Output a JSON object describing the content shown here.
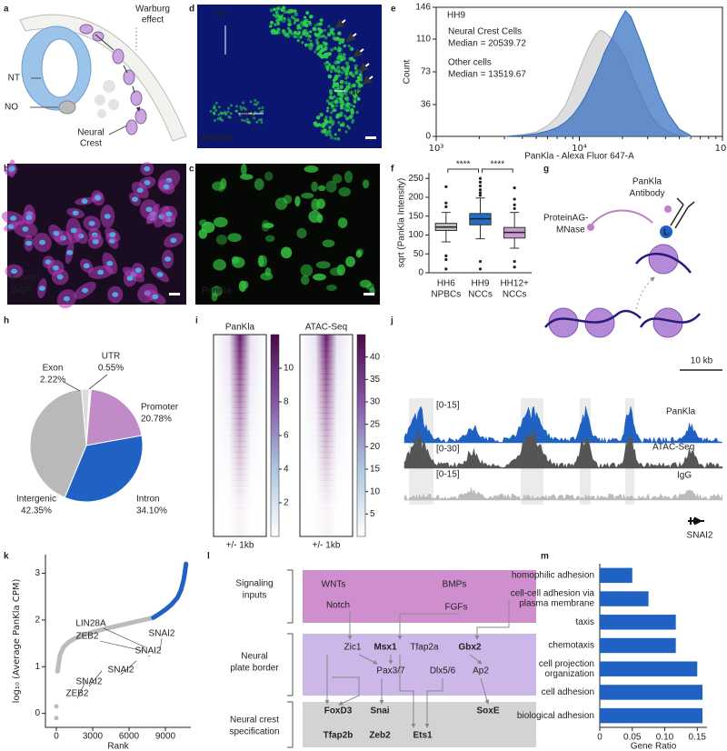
{
  "panel_labels": [
    "a",
    "b",
    "c",
    "d",
    "e",
    "f",
    "g",
    "h",
    "i",
    "j",
    "k",
    "l",
    "m"
  ],
  "figure": {
    "a": {
      "effect": [
        "Warburg",
        "effect"
      ],
      "nt": "NT",
      "no": "NO",
      "crest": [
        "Neural",
        "Crest"
      ]
    },
    "b": {
      "stains": [
        "F-Actin",
        "DAPI"
      ]
    },
    "c": {
      "stain": "PanKla"
    },
    "d": {
      "nt": "NT",
      "nc": "NC",
      "no": "NO",
      "stain": "PanKla"
    },
    "g": {
      "antibody": [
        "PanKla",
        "Antibody"
      ],
      "enzyme": [
        "ProteinAG-",
        "MNase"
      ],
      "linker": "L"
    },
    "j": {
      "scale": "10 kb",
      "tracks": [
        {
          "name": "PanKla",
          "range": "[0-15]",
          "color": "#1f62c4"
        },
        {
          "name": "ATAC-Seq",
          "range": "[0-30]",
          "color": "#555555"
        },
        {
          "name": "IgG",
          "range": "[0-15]",
          "color": "#bbbbbb"
        }
      ],
      "gene": "SNAI2"
    },
    "l": {
      "sections": [
        {
          "label": [
            "Signaling",
            "inputs"
          ],
          "nodes": [
            {
              "label": "WNTs",
              "color": "#444444"
            },
            {
              "label": "BMPs",
              "color": "#444444"
            },
            {
              "label": "Notch",
              "color": "#444444"
            },
            {
              "label": "FGFs",
              "color": "#444444"
            }
          ]
        },
        {
          "label": [
            "Neural",
            "plate border"
          ],
          "nodes": [
            {
              "label": "Zic1",
              "color": "#444444"
            },
            {
              "label": "Msx1",
              "color": "#1f62c4"
            },
            {
              "label": "Tfap2a",
              "color": "#444444"
            },
            {
              "label": "Gbx2",
              "color": "#1f62c4"
            },
            {
              "label": "Pax3/7",
              "color": "#444444"
            },
            {
              "label": "Dlx5/6",
              "color": "#444444"
            },
            {
              "label": "Ap2",
              "color": "#444444"
            }
          ]
        },
        {
          "label": [
            "Neural crest",
            "specification"
          ],
          "nodes": [
            {
              "label": "FoxD3",
              "color": "#1f62c4"
            },
            {
              "label": "Snai",
              "color": "#1f62c4"
            },
            {
              "label": "SoxE",
              "color": "#1f62c4"
            },
            {
              "label": "Tfap2b",
              "color": "#1f62c4"
            },
            {
              "label": "Zeb2",
              "color": "#1f62c4"
            },
            {
              "label": "Ets1",
              "color": "#1f62c4"
            }
          ]
        }
      ]
    }
  },
  "chart_data": [
    {
      "type": "area",
      "annotation": "HH9",
      "xlabel": "PanKla - Alexa Fluor 647-A",
      "ylabel": "Count",
      "xlog": true,
      "xlim": [
        1000,
        100000
      ],
      "xticks": [
        {
          "value": 1000,
          "label": "10³"
        },
        {
          "value": 10000,
          "label": "10⁴"
        },
        {
          "value": 100000,
          "label": "10⁵"
        }
      ],
      "ylim": [
        0,
        146
      ],
      "yticks": [
        0,
        36,
        73,
        110,
        146
      ],
      "x": [
        3000,
        4000,
        5000,
        6000,
        7000,
        8000,
        9000,
        10000,
        11000,
        12000,
        13000,
        14000,
        15000,
        17000,
        19000,
        21000,
        23000,
        25000,
        28000,
        32000,
        36000,
        42000,
        50000,
        60000
      ],
      "series": [
        {
          "name": "Neural Crest Cells",
          "median_label": "Median = 20539.72",
          "color": "#2f6bbf",
          "values": [
            0,
            1,
            3,
            6,
            10,
            16,
            24,
            34,
            45,
            58,
            70,
            82,
            95,
            112,
            130,
            142,
            135,
            120,
            100,
            72,
            48,
            25,
            8,
            1
          ]
        },
        {
          "name": "Other cells",
          "median_label": "Median = 13519.67",
          "color": "#b5b5b5",
          "values": [
            0,
            2,
            5,
            12,
            22,
            35,
            55,
            75,
            92,
            105,
            115,
            120,
            118,
            110,
            100,
            88,
            72,
            58,
            40,
            22,
            12,
            5,
            1,
            0
          ]
        }
      ]
    },
    {
      "type": "box",
      "ylabel": "sqrt (PanKla Intensity)",
      "ylim": [
        0,
        265
      ],
      "yticks": [
        0,
        50,
        100,
        150,
        200,
        250
      ],
      "categories": [
        [
          "HH6",
          "NPBCs"
        ],
        [
          "HH9",
          "NCCs"
        ],
        [
          "HH12+",
          "NCCs"
        ]
      ],
      "colors": [
        "#bdbdbd",
        "#1f6fc8",
        "#c99bd0"
      ],
      "values": [
        [
          82,
          112,
          121,
          131,
          160
        ],
        [
          90,
          127,
          143,
          157,
          198
        ],
        [
          65,
          92,
          107,
          120,
          160
        ]
      ],
      "outliers": [
        [
          10,
          35,
          45,
          175,
          185,
          228
        ],
        [
          10,
          30,
          205,
          212,
          220,
          230,
          240,
          250
        ],
        [
          15,
          30,
          170,
          180,
          195,
          225
        ]
      ],
      "significance": [
        "****",
        "****"
      ]
    },
    {
      "type": "pie",
      "categories": [
        "Exon",
        "UTR",
        "Promoter",
        "Intron",
        "Intergenic"
      ],
      "values": [
        2.22,
        0.55,
        20.78,
        34.1,
        42.35
      ],
      "value_labels": [
        "2.22%",
        "0.55%",
        "20.78%",
        "34.10%",
        "42.35%"
      ],
      "colors": [
        "#dcdcdc",
        "#ffffff",
        "#c08bc6",
        "#1f62c4",
        "#b9b9b9"
      ]
    },
    {
      "type": "heatmap",
      "panels": [
        {
          "title": "PanKla",
          "xlabel": "+/- 1kb",
          "clim": [
            0,
            12
          ],
          "cticks": [
            2,
            4,
            6,
            8,
            10
          ]
        },
        {
          "title": "ATAC-Seq",
          "xlabel": "+/- 1kb",
          "clim": [
            0,
            45
          ],
          "cticks": [
            5,
            10,
            15,
            20,
            25,
            30,
            35,
            40
          ]
        }
      ]
    },
    {
      "type": "line",
      "xlabel": "Rank",
      "ylabel": "log₁₀ (Average PanKla CPM)",
      "xlim": [
        -900,
        11100
      ],
      "xticks": [
        0,
        3000,
        6000,
        9000
      ],
      "ylim": [
        -0.3,
        3.4
      ],
      "yticks": [
        0,
        1,
        2,
        3
      ],
      "series": [
        {
          "color": "#bcbcbc",
          "x": [
            0,
            0,
            0,
            0,
            100,
            300,
            600,
            1000,
            1500,
            2000,
            3000,
            4000,
            5000,
            6000,
            7000,
            8000
          ],
          "values": [
            -0.1,
            null,
            0.15,
            null,
            0.9,
            1.25,
            1.42,
            1.52,
            1.6,
            1.66,
            1.74,
            1.81,
            1.87,
            1.93,
            1.99,
            2.05
          ]
        },
        {
          "color": "#1f62c4",
          "x": [
            8000,
            8500,
            9000,
            9500,
            10000,
            10300,
            10500,
            10600,
            10700
          ],
          "values": [
            2.05,
            2.13,
            2.22,
            2.33,
            2.48,
            2.65,
            2.85,
            3.0,
            3.2
          ]
        }
      ],
      "annotations": [
        "LIN28A",
        "ZEB2",
        "SNAI2",
        "SNAI2",
        "SNAI2",
        "SNAI2",
        "ZEB2"
      ]
    },
    {
      "type": "barh",
      "xlabel": "Gene Ratio",
      "color": "#1f62c4",
      "xlim": [
        0,
        0.165
      ],
      "xticks": [
        0,
        0.05,
        {
          "value": 0.1,
          "label": "0.10"
        },
        0.15
      ],
      "categories": [
        [
          "homophilic adhesion"
        ],
        [
          "cell-cell adhesion via",
          "plasma membrane"
        ],
        [
          "taxis"
        ],
        [
          "chemotaxis"
        ],
        [
          "cell projection",
          "organization"
        ],
        [
          "cell adhesion"
        ],
        [
          "biological adhesion"
        ]
      ],
      "values": [
        0.05,
        0.075,
        0.117,
        0.117,
        0.15,
        0.158,
        0.158
      ]
    }
  ]
}
